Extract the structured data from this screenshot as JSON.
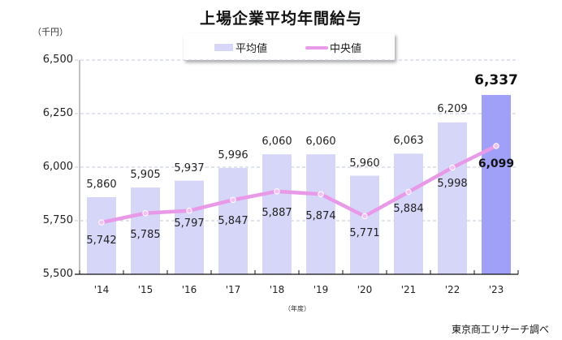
{
  "title": "上場企業平均年間給与",
  "unit_label": "（千円）",
  "x_unit_label": "（年度）",
  "source": "東京商工リサーチ調べ",
  "legend": [
    {
      "label": "平均値",
      "type": "bar",
      "color": "#d6d6f8"
    },
    {
      "label": "中央値",
      "type": "line",
      "color": "#e89ae8"
    }
  ],
  "colors": {
    "bar": "#d6d6f8",
    "bar_highlight": "#a0a0f8",
    "line": "#e89ae8",
    "grid": "#c0c8d8"
  },
  "y_ticks": [
    "6,500",
    "6,250",
    "6,000",
    "5,750",
    "5,500"
  ],
  "x_ticks": [
    "'14",
    "'15",
    "'16",
    "'17",
    "'18",
    "'19",
    "'20",
    "'21",
    "'22",
    "'23"
  ],
  "bar_labels": [
    "5,860",
    "5,905",
    "5,937",
    "5,996",
    "6,060",
    "6,060",
    "5,960",
    "6,063",
    "6,209",
    "6,337"
  ],
  "line_labels": [
    "5,742",
    "5,785",
    "5,797",
    "5,847",
    "5,887",
    "5,874",
    "5,771",
    "5,884",
    "5,998",
    "6,099"
  ],
  "chart_data": {
    "type": "bar",
    "title": "上場企業平均年間給与",
    "xlabel": "（年度）",
    "ylabel": "（千円）",
    "ylim": [
      5500,
      6500
    ],
    "y_ticks": [
      5500,
      5750,
      6000,
      6250,
      6500
    ],
    "grid": true,
    "legend_position": "top",
    "categories": [
      "'14",
      "'15",
      "'16",
      "'17",
      "'18",
      "'19",
      "'20",
      "'21",
      "'22",
      "'23"
    ],
    "series": [
      {
        "name": "平均値",
        "type": "bar",
        "values": [
          5860,
          5905,
          5937,
          5996,
          6060,
          6060,
          5960,
          6063,
          6209,
          6337
        ]
      },
      {
        "name": "中央値",
        "type": "line",
        "values": [
          5742,
          5785,
          5797,
          5847,
          5887,
          5874,
          5771,
          5884,
          5998,
          6099
        ]
      }
    ],
    "annotations": [
      "東京商工リサーチ調べ"
    ]
  }
}
